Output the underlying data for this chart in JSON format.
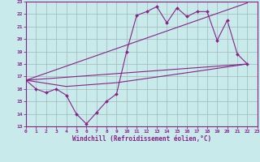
{
  "background_color": "#c8eaea",
  "grid_color": "#a0b8b8",
  "line_color": "#882288",
  "xlabel": "Windchill (Refroidissement éolien,°C)",
  "xlim": [
    0,
    23
  ],
  "ylim": [
    13,
    23
  ],
  "xticks": [
    0,
    1,
    2,
    3,
    4,
    5,
    6,
    7,
    8,
    9,
    10,
    11,
    12,
    13,
    14,
    15,
    16,
    17,
    18,
    19,
    20,
    21,
    22,
    23
  ],
  "yticks": [
    13,
    14,
    15,
    16,
    17,
    18,
    19,
    20,
    21,
    22,
    23
  ],
  "line1_x": [
    0,
    1,
    2,
    3,
    4,
    5,
    6,
    7,
    8,
    9,
    10,
    11,
    12,
    13,
    14,
    15,
    16,
    17,
    18,
    19,
    20,
    21,
    22
  ],
  "line1_y": [
    16.7,
    16.0,
    15.7,
    16.0,
    15.5,
    14.0,
    13.2,
    14.1,
    15.0,
    15.6,
    19.0,
    21.9,
    22.2,
    22.6,
    21.3,
    22.5,
    21.8,
    22.2,
    22.2,
    19.9,
    21.5,
    18.8,
    18.0
  ],
  "line2_x": [
    0,
    22
  ],
  "line2_y": [
    16.7,
    18.0
  ],
  "line3_x": [
    0,
    22
  ],
  "line3_y": [
    16.7,
    22.9
  ],
  "line4_x": [
    0,
    4,
    9,
    16,
    22
  ],
  "line4_y": [
    16.7,
    16.2,
    16.5,
    17.3,
    18.0
  ]
}
